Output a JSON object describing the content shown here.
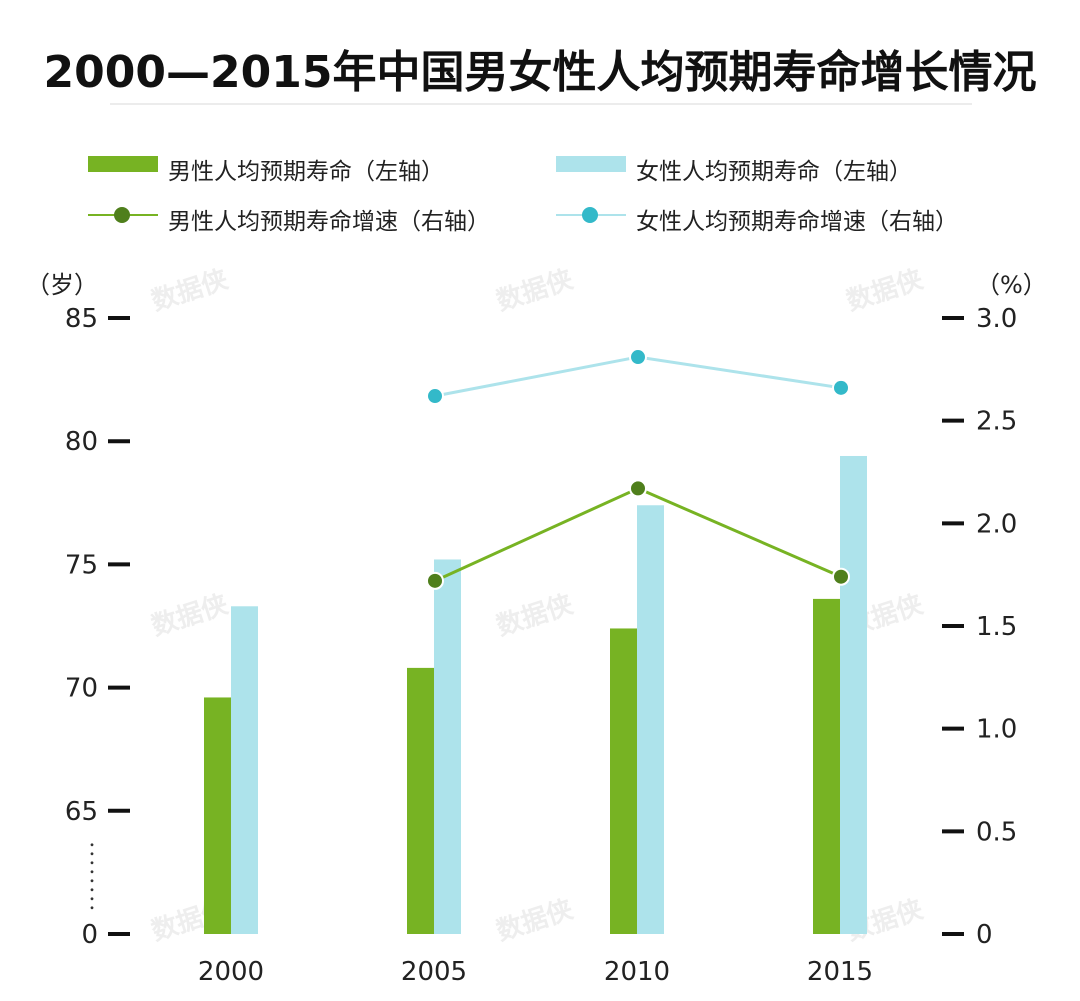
{
  "title": "2000—2015年中国男女性人均预期寿命增长情况",
  "legend": {
    "male_bar": "男性人均预期寿命（左轴）",
    "female_bar": "女性人均预期寿命（左轴）",
    "male_line": "男性人均预期寿命增速（右轴）",
    "female_line": "女性人均预期寿命增速（右轴）"
  },
  "watermark": "数据侠",
  "chart_data": {
    "type": "bar",
    "title": "2000—2015年中国男女性人均预期寿命增长情况",
    "categories": [
      "2000",
      "2005",
      "2010",
      "2015"
    ],
    "left_axis": {
      "unit": "（岁）",
      "ticks": [
        "0",
        "65",
        "70",
        "75",
        "80",
        "85"
      ],
      "tick_values": [
        60,
        65,
        70,
        75,
        80,
        85
      ],
      "range": [
        60,
        85
      ],
      "axis_break_below": 65
    },
    "right_axis": {
      "unit": "（%）",
      "ticks": [
        "0",
        "0.5",
        "1.0",
        "1.5",
        "2.0",
        "2.5",
        "3.0"
      ],
      "tick_values": [
        0,
        0.5,
        1.0,
        1.5,
        2.0,
        2.5,
        3.0
      ],
      "range": [
        0,
        3.0
      ]
    },
    "series": [
      {
        "name": "男性人均预期寿命（左轴）",
        "type": "bar",
        "axis": "left",
        "color": "#77b323",
        "values": [
          69.6,
          70.8,
          72.4,
          73.6
        ]
      },
      {
        "name": "女性人均预期寿命（左轴）",
        "type": "bar",
        "axis": "left",
        "color": "#ade3eb",
        "values": [
          73.3,
          75.2,
          77.4,
          79.4
        ]
      },
      {
        "name": "男性人均预期寿命增速（右轴）",
        "type": "line",
        "axis": "right",
        "color": "#77b323",
        "marker_color": "#4f7f1c",
        "values": [
          null,
          1.72,
          2.17,
          1.74
        ]
      },
      {
        "name": "女性人均预期寿命增速（右轴）",
        "type": "line",
        "axis": "right",
        "color": "#ade3eb",
        "marker_color": "#33b9c9",
        "values": [
          null,
          2.62,
          2.81,
          2.66
        ]
      }
    ]
  }
}
